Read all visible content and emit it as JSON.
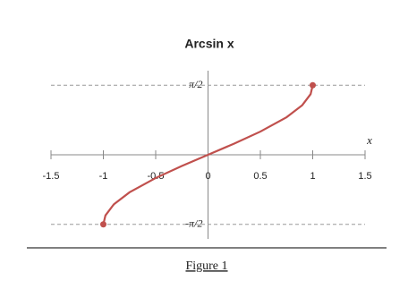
{
  "chart_data": {
    "type": "line",
    "title": "Arcsin x",
    "x_label": "x",
    "x": [
      -1,
      -0.98,
      -0.9,
      -0.75,
      -0.5,
      -0.25,
      0,
      0.25,
      0.5,
      0.75,
      0.9,
      0.98,
      1
    ],
    "series": [
      {
        "name": "arcsin",
        "color": "#c0504d",
        "values": [
          -1.571,
          -1.37,
          -1.12,
          -0.848,
          -0.524,
          -0.253,
          0,
          0.253,
          0.524,
          0.848,
          1.12,
          1.37,
          1.571
        ]
      }
    ],
    "xlim": [
      -1.5,
      1.5
    ],
    "xticks": [
      -1.5,
      -1,
      -0.5,
      0,
      0.5,
      1,
      1.5
    ],
    "ylim": [
      -1.9,
      1.9
    ],
    "yticks": [
      {
        "value": 1.5708,
        "label": "π/2"
      },
      {
        "value": -1.5708,
        "label": "-π/2"
      }
    ],
    "grid": true,
    "caption": "Figure 1"
  }
}
